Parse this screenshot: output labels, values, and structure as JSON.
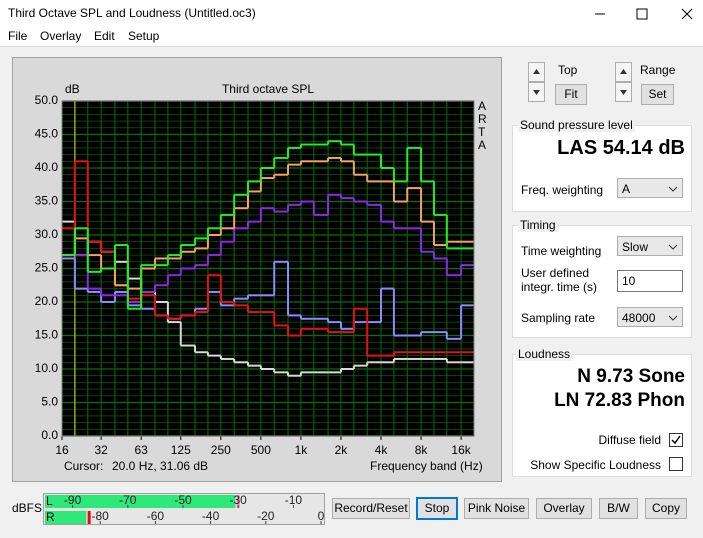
{
  "window": {
    "title": "Third Octave SPL and Loudness (Untitled.oc3)"
  },
  "menu": [
    "File",
    "Overlay",
    "Edit",
    "Setup"
  ],
  "chart_data": {
    "type": "line",
    "step": true,
    "title": "Third octave SPL",
    "y_label": "dB",
    "x_label": "Frequency band (Hz)",
    "brand": "ARTA",
    "cursor": {
      "label": "Cursor:",
      "readout": "20.0 Hz, 31.06 dB",
      "x": 20,
      "color": "#e8e800"
    },
    "xscale": "log",
    "xlim": [
      16,
      20000
    ],
    "ylim": [
      0,
      50
    ],
    "xticks": [
      16,
      {
        "value": 31.5,
        "label": "32"
      },
      63,
      125,
      250,
      500,
      {
        "value": 1000,
        "label": "1k"
      },
      {
        "value": 2000,
        "label": "2k"
      },
      {
        "value": 4000,
        "label": "4k"
      },
      {
        "value": 8000,
        "label": "8k"
      },
      {
        "value": 16000,
        "label": "16k"
      }
    ],
    "yticks": [
      {
        "value": 0,
        "label": "0.0"
      },
      {
        "value": 5,
        "label": "5.0"
      },
      {
        "value": 10,
        "label": "10.0"
      },
      {
        "value": 15,
        "label": "15.0"
      },
      {
        "value": 20,
        "label": "20.0"
      },
      {
        "value": 25,
        "label": "25.0"
      },
      {
        "value": 30,
        "label": "30.0"
      },
      {
        "value": 35,
        "label": "35.0"
      },
      {
        "value": 40,
        "label": "40.0"
      },
      {
        "value": 45,
        "label": "45.0"
      },
      {
        "value": 50,
        "label": "50.0"
      }
    ],
    "grid": true,
    "grid_color": "#0b6e0b",
    "ygrid_minor": 1,
    "background": "#000000",
    "x": [
      16,
      20,
      25,
      31.5,
      40,
      50,
      63,
      80,
      100,
      125,
      160,
      200,
      250,
      315,
      400,
      500,
      630,
      800,
      1000,
      1250,
      1600,
      2000,
      2500,
      3150,
      4000,
      5000,
      6300,
      8000,
      10000,
      12500,
      16000
    ],
    "series": [
      {
        "color": "#d8d8d8",
        "values": [
          32,
          27,
          29,
          27.5,
          26,
          23.5,
          21.5,
          20,
          17,
          13.5,
          12.5,
          12,
          11.5,
          11,
          10.5,
          10,
          9.5,
          9,
          9.5,
          9.5,
          9.5,
          10,
          10.5,
          11,
          11,
          11.5,
          11.5,
          11.5,
          11.5,
          11,
          11
        ]
      },
      {
        "color": "#8c8cff",
        "values": [
          26.5,
          22,
          21.5,
          20,
          21.5,
          19.5,
          19,
          18,
          17.5,
          18,
          19,
          21.5,
          19.5,
          20.5,
          21,
          21,
          26,
          18,
          17.5,
          17.5,
          17,
          16,
          17,
          17,
          22,
          15,
          15,
          15.5,
          15.5,
          14.5,
          19.5
        ]
      },
      {
        "color": "#e81010",
        "values": [
          31,
          41,
          29,
          27.5,
          22.5,
          20.5,
          21,
          18,
          17.5,
          18,
          18.5,
          24,
          20,
          19.5,
          18.5,
          18.5,
          16.5,
          15,
          16,
          16,
          15.5,
          15.5,
          19,
          12,
          12,
          12.5,
          12.5,
          12.5,
          12.5,
          12.5,
          12.5
        ]
      },
      {
        "color": "#8a2be2",
        "values": [
          27,
          27,
          22,
          21,
          21,
          20,
          21.5,
          22.5,
          24,
          25,
          25.5,
          27,
          29,
          31,
          32,
          34,
          33.5,
          34.5,
          35,
          33,
          36,
          35.5,
          35,
          34.5,
          32,
          31,
          31,
          27.5,
          26.5,
          24,
          25.5
        ]
      },
      {
        "color": "#f4a460",
        "values": [
          27,
          29.5,
          27,
          25,
          22.5,
          22,
          25,
          26.5,
          26.5,
          27.5,
          28,
          30,
          31,
          34,
          36.5,
          38.5,
          39,
          40.5,
          41,
          41,
          41.5,
          41,
          39,
          38,
          38,
          35,
          37,
          32,
          28.5,
          29,
          29
        ]
      },
      {
        "color": "#22ee22",
        "values": [
          27,
          31,
          24.5,
          25,
          28.5,
          19,
          25.5,
          25.5,
          27,
          28.5,
          29.5,
          31,
          33,
          36,
          38,
          40,
          41.5,
          43,
          43.5,
          43.5,
          44,
          43.5,
          42,
          42,
          40,
          38,
          43,
          38,
          33,
          28,
          28
        ]
      }
    ]
  },
  "controls": {
    "top": "Top",
    "fit": "Fit",
    "range": "Range",
    "set": "Set"
  },
  "spl": {
    "title": "Sound pressure level",
    "reading": "LAS 54.14 dB",
    "weighting_label": "Freq. weighting",
    "weighting": "A"
  },
  "timing": {
    "title": "Timing",
    "weighting_label": "Time weighting",
    "weighting": "Slow",
    "integr_label": "User defined integr. time (s)",
    "integr": 10,
    "rate_label": "Sampling rate",
    "rate": 48000
  },
  "loudness": {
    "title": "Loudness",
    "sone": "N 9.73 Sone",
    "phon": "LN 72.83 Phon",
    "diffuse": "Diffuse field",
    "diffuse_checked": true,
    "specific": "Show Specific Loudness",
    "specific_checked": false
  },
  "meter": {
    "unit": "dBFS",
    "lim": [
      -100,
      0
    ],
    "level_color": "#2ee87a",
    "channels": [
      {
        "name": "L",
        "level": -31,
        "peak": -30,
        "peak_color": "#ff80c0",
        "ticks": [
          -90,
          -70,
          -50,
          -30,
          -10
        ]
      },
      {
        "name": "R",
        "level": -85,
        "peak": -84,
        "peak_color": "#e01010",
        "ticks": [
          -80,
          -60,
          -40,
          -20,
          0
        ]
      }
    ]
  },
  "buttons": [
    "Record/Reset",
    "Stop",
    "Pink Noise",
    "Overlay",
    "B/W",
    "Copy"
  ]
}
